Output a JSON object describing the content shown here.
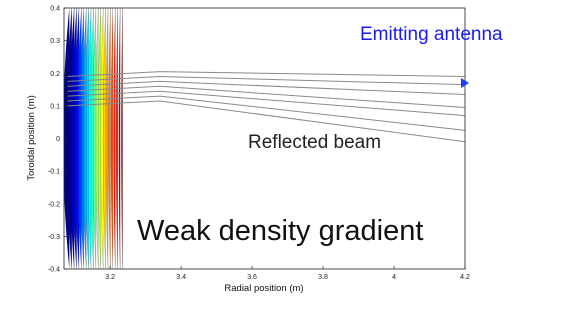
{
  "chart_data": {
    "type": "line",
    "xlabel": "Radial position (m)",
    "ylabel": "Toroidal position (m)",
    "xlim": [
      3.07,
      4.2
    ],
    "ylim": [
      -0.4,
      0.4
    ],
    "x_ticks": [
      {
        "value": 3.2,
        "label": "3.2"
      },
      {
        "value": 3.4,
        "label": "3.4"
      },
      {
        "value": 3.6,
        "label": "3.6"
      },
      {
        "value": 3.8,
        "label": "3.8"
      },
      {
        "value": 4.0,
        "label": "4"
      },
      {
        "value": 4.2,
        "label": "4.2"
      }
    ],
    "y_ticks": [
      {
        "value": 0.4,
        "label": "0.4"
      },
      {
        "value": 0.3,
        "label": "0.3"
      },
      {
        "value": 0.2,
        "label": "0.2"
      },
      {
        "value": 0.1,
        "label": "0.1"
      },
      {
        "value": 0.0,
        "label": "0"
      },
      {
        "value": -0.1,
        "label": "-0.1"
      },
      {
        "value": -0.2,
        "label": "-0.2"
      },
      {
        "value": -0.3,
        "label": "-0.3"
      },
      {
        "value": -0.4,
        "label": "-0.4"
      }
    ],
    "grid": false,
    "density_contours": {
      "x_left_min": 3.07,
      "x_left_max": 3.085,
      "x_right": 3.235,
      "colormap": "jet",
      "levels": 22
    },
    "beam_rays": [
      {
        "points": [
          [
            3.08,
            0.19
          ],
          [
            3.34,
            0.205
          ],
          [
            4.2,
            0.19
          ]
        ]
      },
      {
        "points": [
          [
            3.08,
            0.175
          ],
          [
            3.34,
            0.19
          ],
          [
            4.2,
            0.165
          ]
        ]
      },
      {
        "points": [
          [
            3.08,
            0.16
          ],
          [
            3.34,
            0.175
          ],
          [
            4.2,
            0.135
          ]
        ]
      },
      {
        "points": [
          [
            3.08,
            0.145
          ],
          [
            3.34,
            0.16
          ],
          [
            4.2,
            0.095
          ]
        ]
      },
      {
        "points": [
          [
            3.08,
            0.13
          ],
          [
            3.34,
            0.145
          ],
          [
            4.2,
            0.07
          ]
        ]
      },
      {
        "points": [
          [
            3.08,
            0.115
          ],
          [
            3.34,
            0.13
          ],
          [
            4.2,
            0.025
          ]
        ]
      },
      {
        "points": [
          [
            3.08,
            0.1
          ],
          [
            3.34,
            0.115
          ],
          [
            4.2,
            -0.01
          ]
        ]
      }
    ],
    "antenna_marker": {
      "x": 4.2,
      "y": 0.17
    },
    "annotations": {
      "emitting_antenna": {
        "text": "Emitting antenna",
        "color": "#1a1aff"
      },
      "reflected_beam": {
        "text": "Reflected beam",
        "color": "#222222"
      },
      "gradient": {
        "text": "Weak density gradient",
        "color": "#111111"
      }
    },
    "colors": {
      "beam": "#8a8a8a",
      "marker": "#1a3fff",
      "axis": "#222222"
    }
  }
}
